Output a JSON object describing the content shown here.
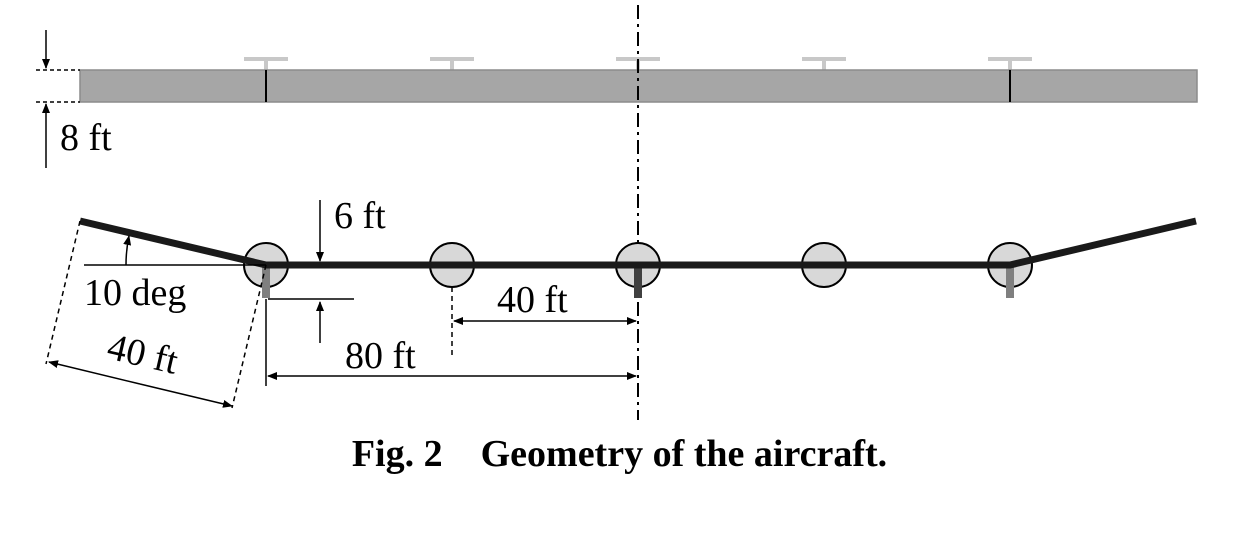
{
  "figure": {
    "labels": {
      "wing_thickness": "8 ft",
      "dihedral_offset": "6 ft",
      "dihedral_angle": "10 deg",
      "outer_panel_length": "40 ft",
      "inner_spacing": "40 ft",
      "half_span_inner": "80 ft"
    },
    "colors": {
      "wing_fill": "#a6a6a6",
      "wing_edge": "#808080",
      "tail_gray": "#c8c8c8",
      "circle_fill": "#d8d8d8",
      "spar_dark": "#1a1a1a",
      "strut_gray": "#7f7f7f",
      "strut_dark": "#404040"
    }
  },
  "caption": {
    "number": "Fig. 2",
    "text": "Geometry of the aircraft."
  }
}
